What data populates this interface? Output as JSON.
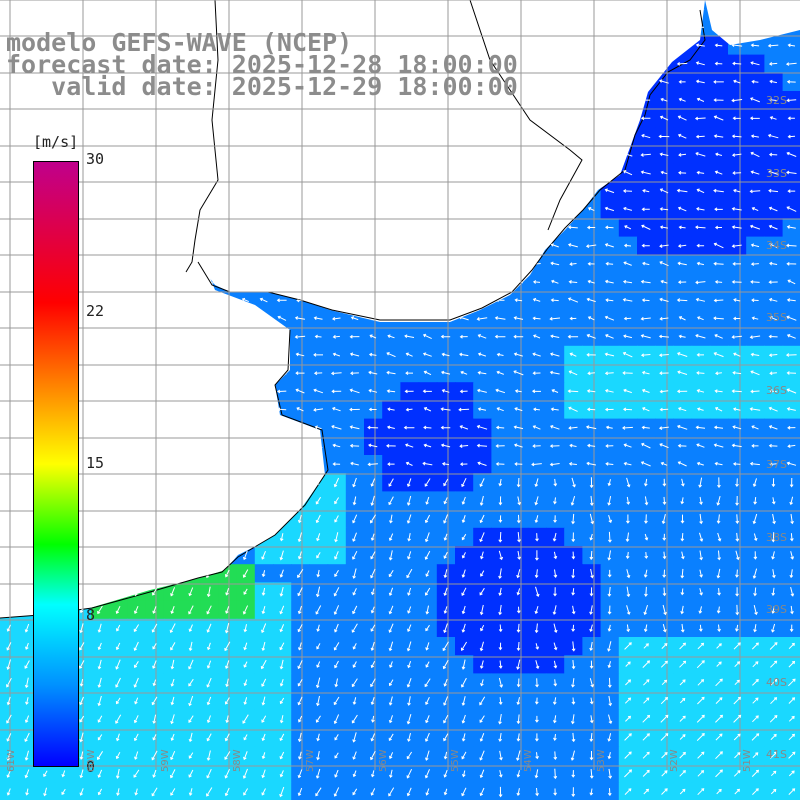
{
  "title": {
    "line1": "modelo GEFS-WAVE (NCEP)",
    "line2": "forecast date: 2025-12-28 18:00:00",
    "line3": "   valid date: 2025-12-29 18:00:00"
  },
  "colorbar": {
    "unit": "[m/s]",
    "ticks": [
      "30",
      "22",
      "15",
      "8",
      "0"
    ],
    "stops": [
      {
        "v": 0,
        "color": "#0000ff"
      },
      {
        "v": 4,
        "color": "#0090ff"
      },
      {
        "v": 8,
        "color": "#00ffff"
      },
      {
        "v": 11,
        "color": "#00ff00"
      },
      {
        "v": 15,
        "color": "#ffff00"
      },
      {
        "v": 19,
        "color": "#ff8000"
      },
      {
        "v": 23,
        "color": "#ff0000"
      },
      {
        "v": 30,
        "color": "#c0008c"
      }
    ]
  },
  "lat_labels": [
    "32S",
    "33S",
    "34S",
    "35S",
    "36S",
    "37S",
    "38S",
    "39S",
    "40S",
    "41S"
  ],
  "lon_labels": [
    "61W",
    "60W",
    "59W",
    "58W",
    "57W",
    "56W",
    "55W",
    "54W",
    "53W",
    "52W",
    "51W"
  ],
  "colors": {
    "ocean_dark": "#0030ff",
    "ocean_mid": "#0a80ff",
    "ocean_light": "#1ad8ff",
    "coast_green": "#22dd55",
    "land": "#ffffff",
    "grid": "#999999"
  }
}
